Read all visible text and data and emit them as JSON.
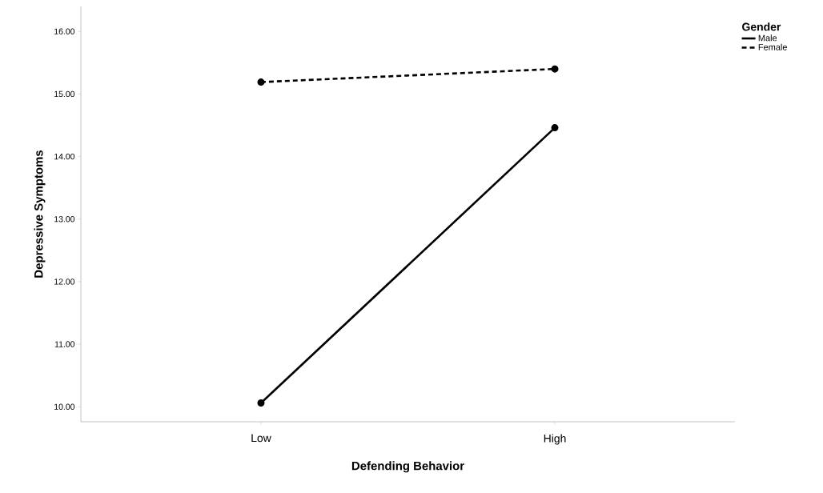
{
  "chart_data": {
    "type": "line",
    "xlabel": "Defending Behavior",
    "ylabel": "Depressive Symptoms",
    "legend_title": "Gender",
    "categories": [
      "Low",
      "High"
    ],
    "series": [
      {
        "name": "Male",
        "color": "#000000",
        "values": [
          10.06,
          14.46
        ],
        "line_style": "solid"
      },
      {
        "name": "Female",
        "color": "#000000",
        "values": [
          15.19,
          15.4
        ],
        "line_style": "dashed"
      }
    ],
    "ylim": [
      9.76,
      16.4
    ],
    "yticks": [
      {
        "value": 10,
        "label": "10.00"
      },
      {
        "value": 11,
        "label": "11.00"
      },
      {
        "value": 12,
        "label": "12.00"
      },
      {
        "value": 13,
        "label": "13.00"
      },
      {
        "value": 14,
        "label": "14.00"
      },
      {
        "value": 15,
        "label": "15.00"
      },
      {
        "value": 16,
        "label": "16.00"
      }
    ],
    "grid": false,
    "legend": "top right",
    "marker": "circle"
  }
}
